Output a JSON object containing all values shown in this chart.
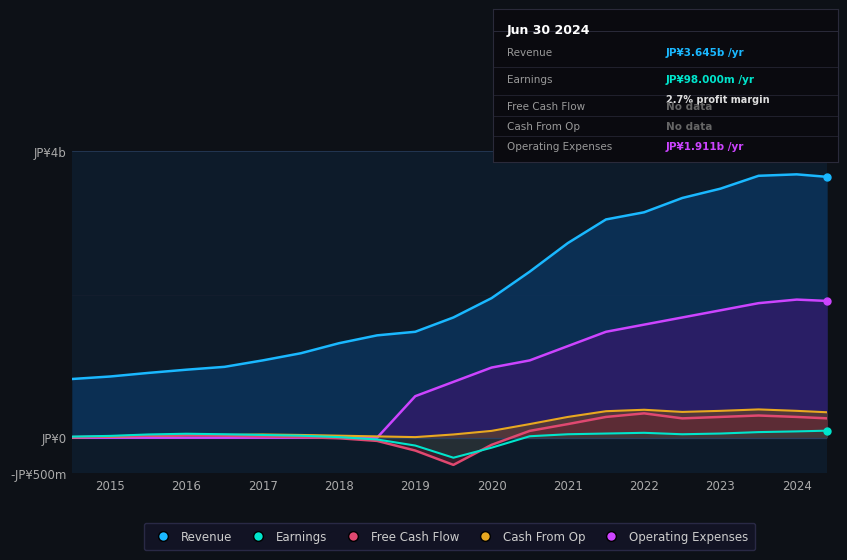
{
  "bg_color": "#0d1117",
  "plot_bg_color": "#0d1b2a",
  "title_box": {
    "date": "Jun 30 2024",
    "rows": [
      {
        "label": "Revenue",
        "value": "JP¥3.645b /yr",
        "value_color": "#1ab8ff",
        "sub": null
      },
      {
        "label": "Earnings",
        "value": "JP¥98.000m /yr",
        "value_color": "#00e5cc",
        "sub": "2.7% profit margin"
      },
      {
        "label": "Free Cash Flow",
        "value": "No data",
        "value_color": "#666666",
        "sub": null
      },
      {
        "label": "Cash From Op",
        "value": "No data",
        "value_color": "#666666",
        "sub": null
      },
      {
        "label": "Operating Expenses",
        "value": "JP¥1.911b /yr",
        "value_color": "#cc44ff",
        "sub": null
      }
    ]
  },
  "years": [
    2014.5,
    2015.0,
    2015.5,
    2016.0,
    2016.5,
    2017.0,
    2017.5,
    2018.0,
    2018.5,
    2019.0,
    2019.5,
    2020.0,
    2020.5,
    2021.0,
    2021.5,
    2022.0,
    2022.5,
    2023.0,
    2023.5,
    2024.0,
    2024.4
  ],
  "revenue": [
    820,
    855,
    905,
    950,
    990,
    1080,
    1180,
    1320,
    1430,
    1480,
    1680,
    1950,
    2320,
    2720,
    3050,
    3150,
    3350,
    3480,
    3660,
    3680,
    3645
  ],
  "earnings": [
    15,
    25,
    45,
    55,
    48,
    38,
    28,
    8,
    -25,
    -110,
    -280,
    -140,
    20,
    48,
    58,
    68,
    48,
    58,
    78,
    88,
    98
  ],
  "free_cash_flow": [
    8,
    18,
    28,
    38,
    28,
    18,
    8,
    -8,
    -45,
    -180,
    -380,
    -100,
    95,
    190,
    290,
    340,
    270,
    290,
    310,
    290,
    270
  ],
  "cash_from_op": [
    5,
    12,
    25,
    35,
    38,
    45,
    38,
    28,
    18,
    8,
    45,
    95,
    190,
    290,
    370,
    390,
    360,
    375,
    395,
    375,
    355
  ],
  "operating_expenses": [
    0,
    0,
    0,
    0,
    0,
    0,
    0,
    0,
    0,
    580,
    780,
    980,
    1080,
    1280,
    1480,
    1580,
    1680,
    1780,
    1880,
    1930,
    1911
  ],
  "ylim": [
    -500,
    4000
  ],
  "ytick_vals": [
    -500,
    0,
    4000
  ],
  "ytick_labels": [
    "-JP¥500m",
    "JP¥0",
    "JP¥4b"
  ],
  "xtick_years": [
    2015,
    2016,
    2017,
    2018,
    2019,
    2020,
    2021,
    2022,
    2023,
    2024
  ],
  "zero_line_color": "#2a4060",
  "grid_mid_color": "#182030",
  "revenue_fill_color": "#0a3a6a",
  "opex_fill_color": "#3a1570",
  "cfop_fill_color": "#7a5010",
  "fcf_fill_color": "#6a2030",
  "earn_fill_color": "#005848",
  "revenue_line_color": "#1ab8ff",
  "opex_line_color": "#cc44ff",
  "cfop_line_color": "#e8a820",
  "fcf_line_color": "#e04870",
  "earn_line_color": "#00e5cc",
  "legend": [
    {
      "label": "Revenue",
      "color": "#1ab8ff"
    },
    {
      "label": "Earnings",
      "color": "#00e5cc"
    },
    {
      "label": "Free Cash Flow",
      "color": "#e04870"
    },
    {
      "label": "Cash From Op",
      "color": "#e8a820"
    },
    {
      "label": "Operating Expenses",
      "color": "#cc44ff"
    }
  ]
}
